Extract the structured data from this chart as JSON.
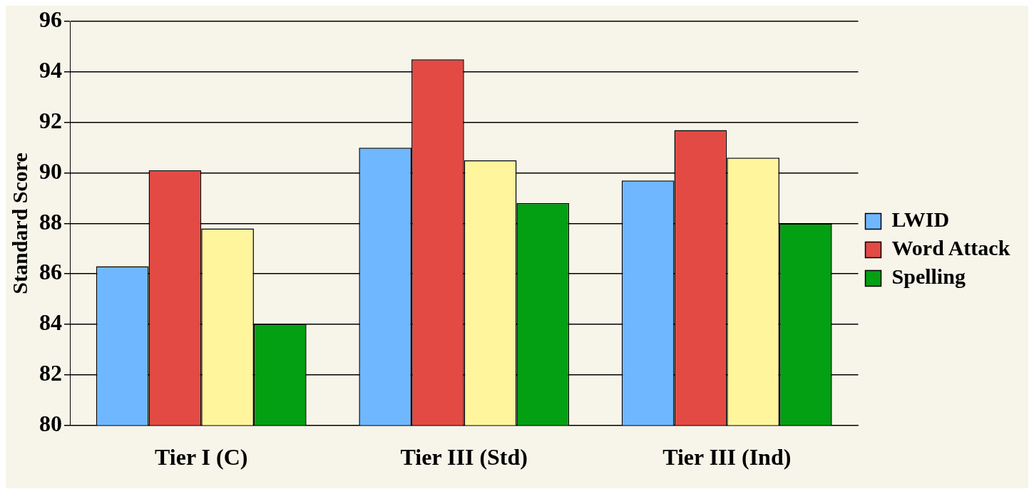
{
  "chart_data": {
    "type": "bar",
    "ylabel": "Standard Score",
    "categories": [
      "Tier I (C)",
      "Tier III (Std)",
      "Tier III (Ind)"
    ],
    "series": [
      {
        "name": "LWID",
        "color": "#6fb7ff",
        "values": [
          86.3,
          91.0,
          89.7
        ]
      },
      {
        "name": "Word Attack",
        "color": "#e34a44",
        "values": [
          90.1,
          94.5,
          91.7
        ]
      },
      {
        "color": "#fff59c",
        "values": [
          87.8,
          90.5,
          90.6
        ]
      },
      {
        "name": "Spelling",
        "color": "#02a012",
        "values": [
          84.0,
          88.8,
          88.0
        ]
      }
    ],
    "ylim": [
      80,
      96
    ],
    "yticks": [
      80,
      82,
      84,
      86,
      88,
      90,
      92,
      94,
      96
    ],
    "grid": "y",
    "legend": "right"
  }
}
